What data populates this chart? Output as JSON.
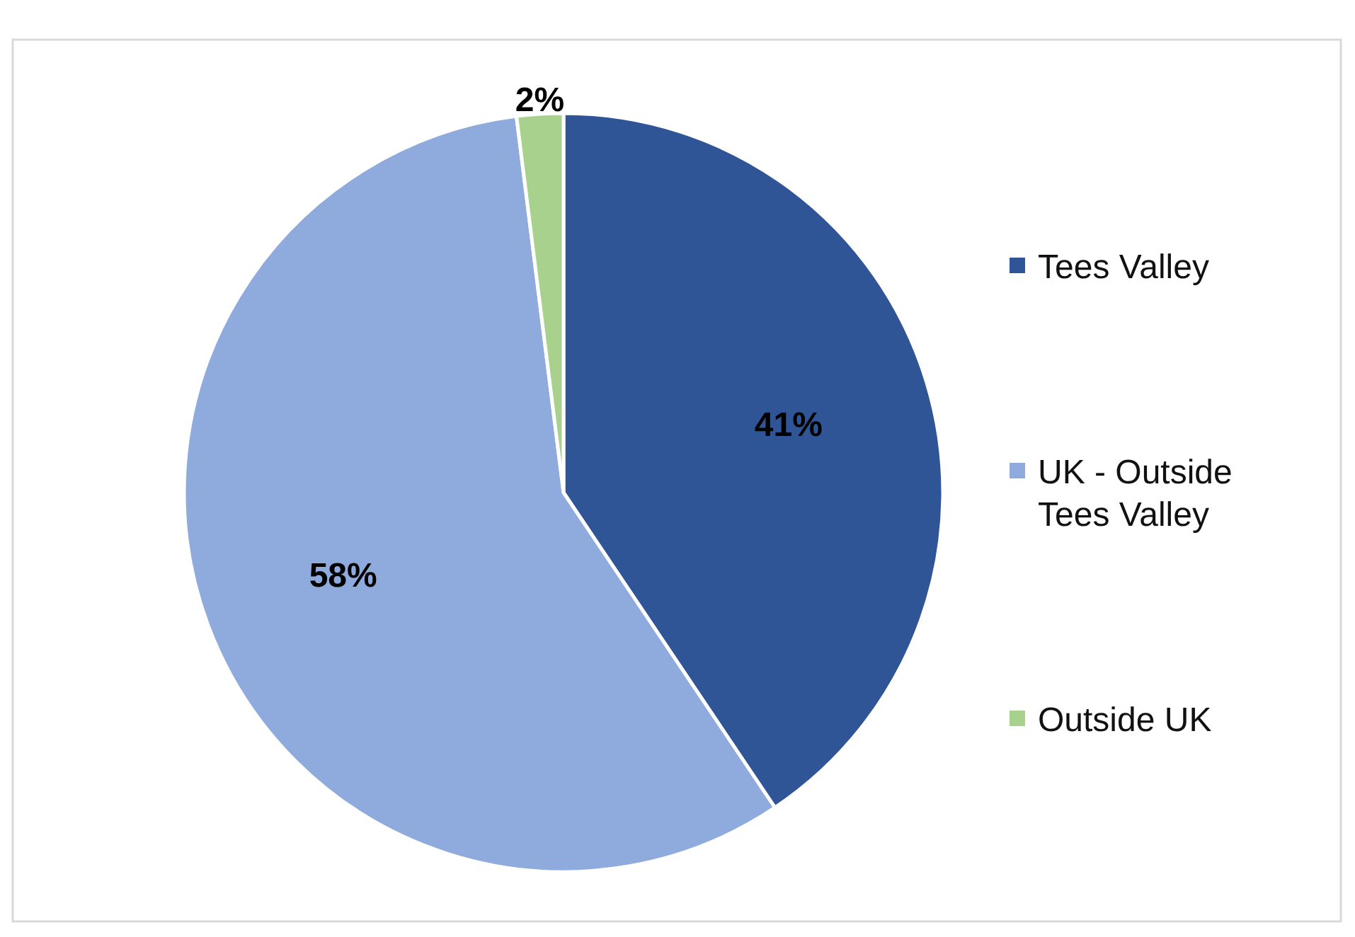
{
  "chart_data": {
    "type": "pie",
    "categories": [
      "Tees Valley",
      "UK - Outside Tees Valley",
      "Outside UK"
    ],
    "values": [
      41,
      58,
      2
    ],
    "colors": [
      "#2f5597",
      "#8faadc",
      "#a9d18e"
    ],
    "value_labels": [
      "41%",
      "58%",
      "2%"
    ],
    "legend": "right"
  }
}
